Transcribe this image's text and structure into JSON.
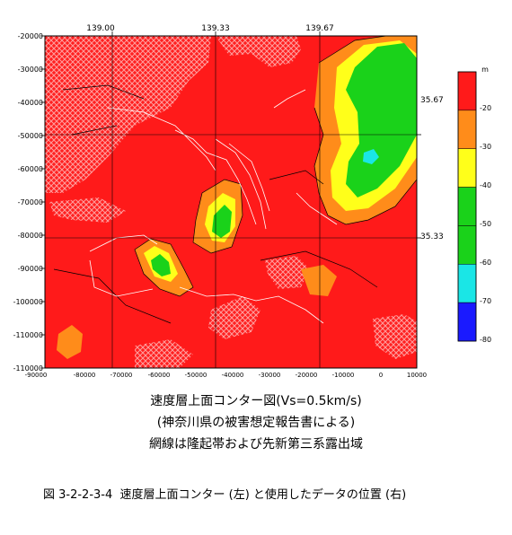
{
  "map": {
    "top_ticks": [
      "139.00",
      "139.33",
      "139.67"
    ],
    "right_ticks": [
      "35.67",
      "35.33"
    ],
    "y_ticks": [
      "-20000",
      "-30000",
      "-40000",
      "-50000",
      "-60000",
      "-70000",
      "-80000",
      "-90000",
      "-100000",
      "-110000"
    ],
    "x_ticks": [
      "-90000",
      "-80000",
      "-70000",
      "-60000",
      "-50000",
      "-40000",
      "-30000",
      "-20000",
      "-10000",
      "0",
      "10000"
    ],
    "x_start_label": "-90000",
    "colors": {
      "band_0_20": "#ff1a1a",
      "band_20_30": "#ff8c1a",
      "band_30_40": "#ffff1a",
      "band_40_60": "#1ad21a",
      "band_60_70": "#1ae6e6",
      "band_70_80": "#1a1aff",
      "hatch": "#ff9a9a"
    }
  },
  "legend": {
    "unit": "m",
    "ticks": [
      "-20",
      "-30",
      "-40",
      "-50",
      "-60",
      "-70",
      "-80"
    ],
    "bands": [
      {
        "color": "#ff1a1a"
      },
      {
        "color": "#ff8c1a"
      },
      {
        "color": "#ffff1a"
      },
      {
        "color": "#1ad21a"
      },
      {
        "color": "#1ad21a"
      },
      {
        "color": "#1ae6e6"
      },
      {
        "color": "#1a1aff"
      }
    ]
  },
  "caption": {
    "line1": "速度層上面コンター図(Vs=0.5km/s)",
    "line2": "(神奈川県の被害想定報告書による)",
    "line3": "網線は隆起帯および先新第三系露出域",
    "figure": "図 3-2-2-3-4  速度層上面コンター (左) と使用したデータの位置 (右)"
  }
}
